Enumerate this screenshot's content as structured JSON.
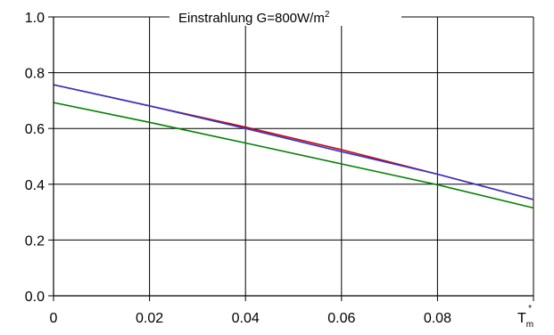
{
  "chart_data": {
    "type": "line",
    "title": "Einstrahlung G=800W/m",
    "title_sup": "2",
    "xlabel_main": "T",
    "xlabel_sub": "m",
    "xlabel_sup": "*",
    "xlim": [
      0,
      0.1
    ],
    "ylim": [
      0,
      1.0
    ],
    "x_ticks": [
      "0",
      "0.02",
      "0.04",
      "0.06",
      "0.08"
    ],
    "y_ticks": [
      "0.0",
      "0.2",
      "0.4",
      "0.6",
      "0.8",
      "1.0"
    ],
    "grid": true,
    "series": [
      {
        "color": "#cc0000",
        "x": [
          0,
          0.04,
          0.06,
          0.08,
          0.1
        ],
        "values": [
          0.757,
          0.605,
          0.524,
          0.436,
          0.345
        ]
      },
      {
        "color": "#3333cc",
        "x": [
          0,
          0.02,
          0.04,
          0.06,
          0.08,
          0.1
        ],
        "values": [
          0.757,
          0.681,
          0.6,
          0.517,
          0.436,
          0.345
        ]
      },
      {
        "color": "#008000",
        "x": [
          0,
          0.02,
          0.04,
          0.06,
          0.08,
          0.1
        ],
        "values": [
          0.693,
          0.622,
          0.548,
          0.473,
          0.398,
          0.315
        ]
      }
    ]
  }
}
